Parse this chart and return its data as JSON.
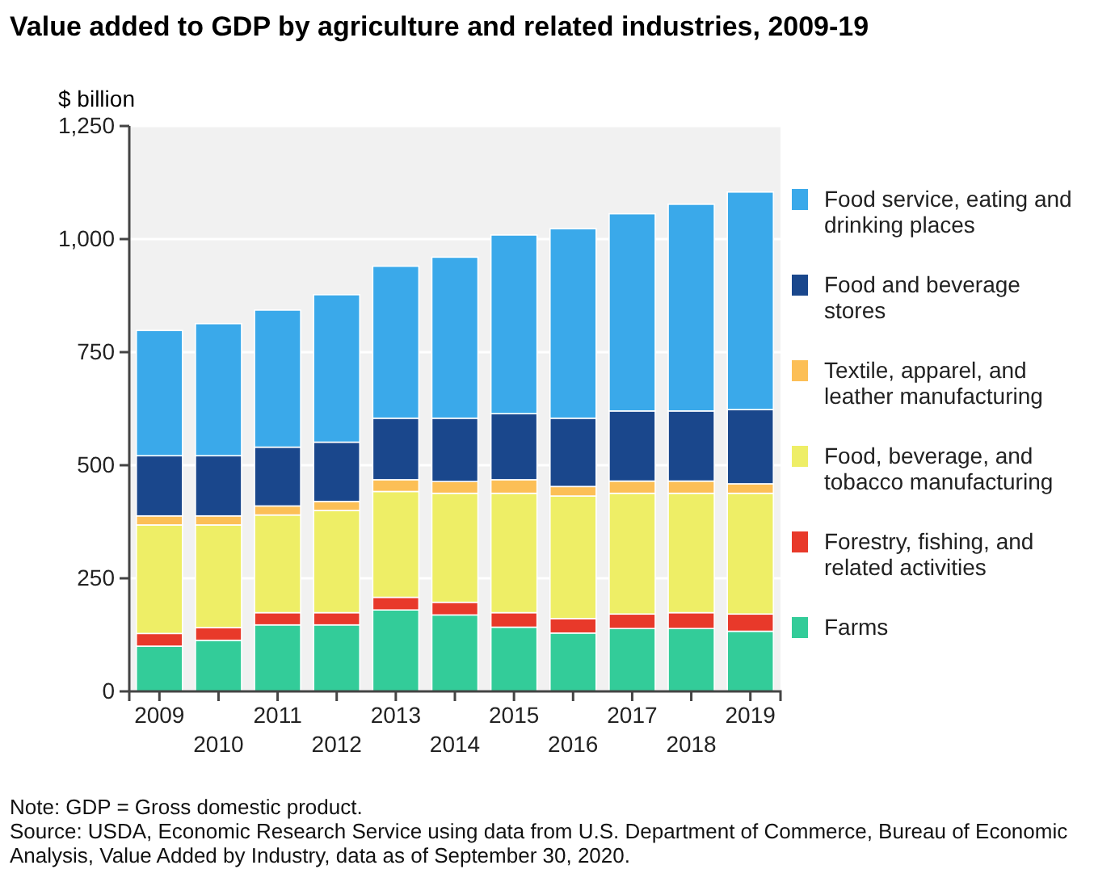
{
  "chart_data": {
    "type": "bar",
    "title": "Value added to GDP by agriculture and related industries, 2009-19",
    "ylabel": "$ billion",
    "categories": [
      "2009",
      "2010",
      "2011",
      "2012",
      "2013",
      "2014",
      "2015",
      "2016",
      "2017",
      "2018",
      "2019"
    ],
    "stacked": true,
    "grid": "y",
    "legend": "right",
    "ylim": [
      0,
      1250
    ],
    "yticks": [
      0,
      250,
      500,
      750,
      {
        "value": 1000,
        "label": "1,000"
      },
      {
        "value": 1250,
        "label": "1,250"
      }
    ],
    "series": [
      {
        "name": "Farms",
        "color": "#33cc99",
        "values": [
          100,
          113,
          147,
          147,
          180,
          169,
          142,
          129,
          139,
          139,
          133
        ]
      },
      {
        "name": "Forestry, fishing, and related activities",
        "color": "#e8392a",
        "values": [
          28,
          28,
          27,
          27,
          28,
          28,
          32,
          32,
          32,
          35,
          38
        ]
      },
      {
        "name": "Food, beverage, and tobacco manufacturing",
        "color": "#eeee66",
        "values": [
          240,
          227,
          216,
          226,
          234,
          241,
          264,
          271,
          267,
          264,
          267
        ]
      },
      {
        "name": "Textile, apparel, and leather manufacturing",
        "color": "#fcbf56",
        "values": [
          20,
          20,
          20,
          20,
          26,
          26,
          30,
          21,
          27,
          27,
          21
        ]
      },
      {
        "name": "Food and beverage stores",
        "color": "#1a478c",
        "values": [
          133,
          133,
          130,
          131,
          136,
          140,
          146,
          151,
          155,
          155,
          164
        ]
      },
      {
        "name": "Food service, eating and drinking places",
        "color": "#3aa9ea",
        "values": [
          277,
          292,
          303,
          326,
          336,
          356,
          395,
          419,
          436,
          457,
          481
        ]
      }
    ],
    "annotations": [
      "Note: GDP = Gross domestic product.",
      "Source: USDA, Economic Research Service using data from U.S. Department of Commerce, Bureau of Economic Analysis, Value Added by Industry, data as of September 30, 2020."
    ]
  }
}
